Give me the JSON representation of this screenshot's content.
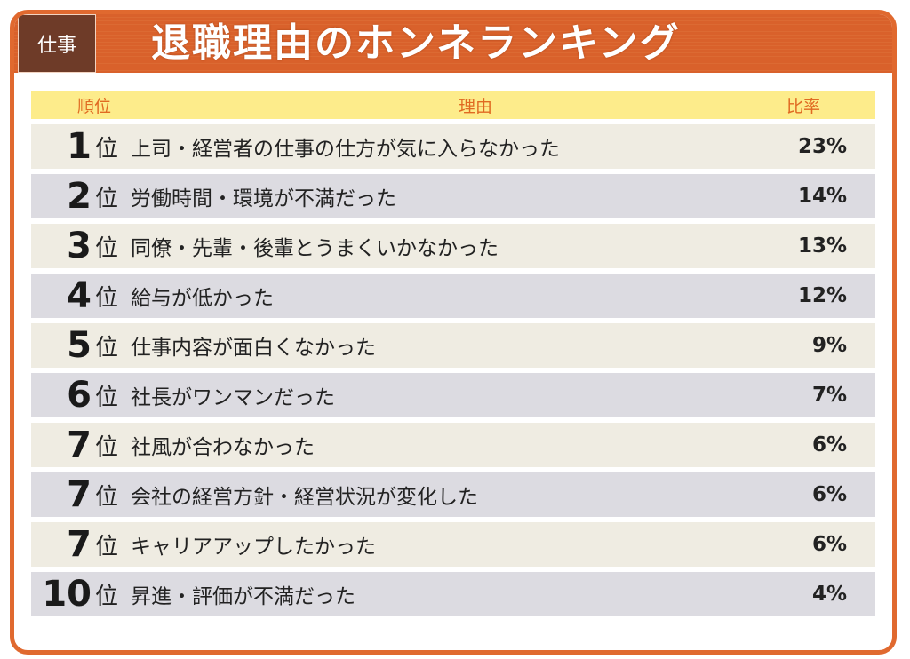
{
  "tag": "仕事",
  "title": "退職理由のホンネランキング",
  "columns": {
    "rank": "順位",
    "reason": "理由",
    "ratio": "比率"
  },
  "rank_suffix": "位",
  "colors": {
    "frame": "#e0692f",
    "tag": "#6e3b28",
    "header_row": "#fdec8b",
    "row_odd": "#efece2",
    "row_even": "#dcdbe1"
  },
  "rows": [
    {
      "rank": "1",
      "reason": "上司・経営者の仕事の仕方が気に入らなかった",
      "ratio": "23%"
    },
    {
      "rank": "2",
      "reason": "労働時間・環境が不満だった",
      "ratio": "14%"
    },
    {
      "rank": "3",
      "reason": "同僚・先輩・後輩とうまくいかなかった",
      "ratio": "13%"
    },
    {
      "rank": "4",
      "reason": "給与が低かった",
      "ratio": "12%"
    },
    {
      "rank": "5",
      "reason": "仕事内容が面白くなかった",
      "ratio": "9%"
    },
    {
      "rank": "6",
      "reason": "社長がワンマンだった",
      "ratio": "7%"
    },
    {
      "rank": "7",
      "reason": "社風が合わなかった",
      "ratio": "6%"
    },
    {
      "rank": "7",
      "reason": "会社の経営方針・経営状況が変化した",
      "ratio": "6%"
    },
    {
      "rank": "7",
      "reason": "キャリアアップしたかった",
      "ratio": "6%"
    },
    {
      "rank": "10",
      "reason": "昇進・評価が不満だった",
      "ratio": "4%"
    }
  ]
}
